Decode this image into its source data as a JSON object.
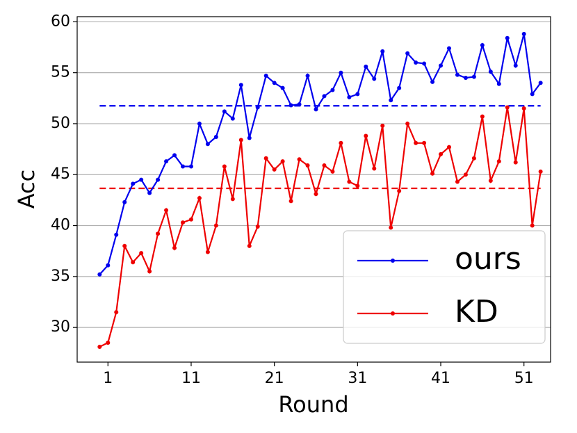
{
  "chart_data": {
    "type": "line",
    "xlabel": "Round",
    "ylabel": "Acc",
    "x": [
      0,
      1,
      2,
      3,
      4,
      5,
      6,
      7,
      8,
      9,
      10,
      11,
      12,
      13,
      14,
      15,
      16,
      17,
      18,
      19,
      20,
      21,
      22,
      23,
      24,
      25,
      26,
      27,
      28,
      29,
      30,
      31,
      32,
      33,
      34,
      35,
      36,
      37,
      38,
      39,
      40,
      41,
      42,
      43,
      44,
      45,
      46,
      47,
      48,
      49,
      50,
      51,
      52,
      53
    ],
    "series": [
      {
        "name": "ours",
        "color": "#0000ee",
        "values": [
          35.2,
          36.1,
          39.1,
          42.3,
          44.1,
          44.5,
          43.2,
          44.5,
          46.3,
          46.9,
          45.8,
          45.8,
          50.0,
          48.0,
          48.7,
          51.2,
          50.5,
          53.8,
          48.6,
          51.6,
          54.7,
          54.0,
          53.5,
          51.8,
          51.9,
          54.7,
          51.4,
          52.7,
          53.3,
          55.0,
          52.6,
          52.9,
          55.6,
          54.4,
          57.1,
          52.3,
          53.5,
          56.9,
          56.0,
          55.9,
          54.1,
          55.7,
          57.4,
          54.8,
          54.5,
          54.6,
          57.7,
          55.1,
          53.9,
          58.4,
          55.7,
          58.8,
          52.9,
          54.0
        ]
      },
      {
        "name": "KD",
        "color": "#ee0000",
        "values": [
          28.1,
          28.5,
          31.5,
          38.0,
          36.4,
          37.3,
          35.5,
          39.2,
          41.5,
          37.8,
          40.3,
          40.6,
          42.7,
          37.4,
          40.0,
          45.8,
          42.6,
          48.4,
          38.0,
          39.9,
          46.6,
          45.5,
          46.3,
          42.4,
          46.5,
          45.9,
          43.1,
          45.9,
          45.3,
          48.1,
          44.3,
          43.9,
          48.8,
          45.6,
          49.8,
          39.8,
          43.4,
          50.0,
          48.1,
          48.1,
          45.1,
          47.0,
          47.7,
          44.3,
          45.0,
          46.6,
          50.7,
          44.4,
          46.3,
          51.6,
          46.2,
          51.5,
          40.0,
          45.3
        ]
      }
    ],
    "hlines": [
      {
        "value": 51.75,
        "color": "#0000ee"
      },
      {
        "value": 43.65,
        "color": "#ee0000"
      }
    ],
    "xlim": [
      -2.7,
      54.2
    ],
    "xticks": [
      1,
      11,
      21,
      31,
      41,
      51
    ],
    "ylim": [
      26.6,
      60.5
    ],
    "yticks": [
      30,
      35,
      40,
      45,
      50,
      55,
      60
    ],
    "grid": true,
    "legend": "lower right"
  }
}
